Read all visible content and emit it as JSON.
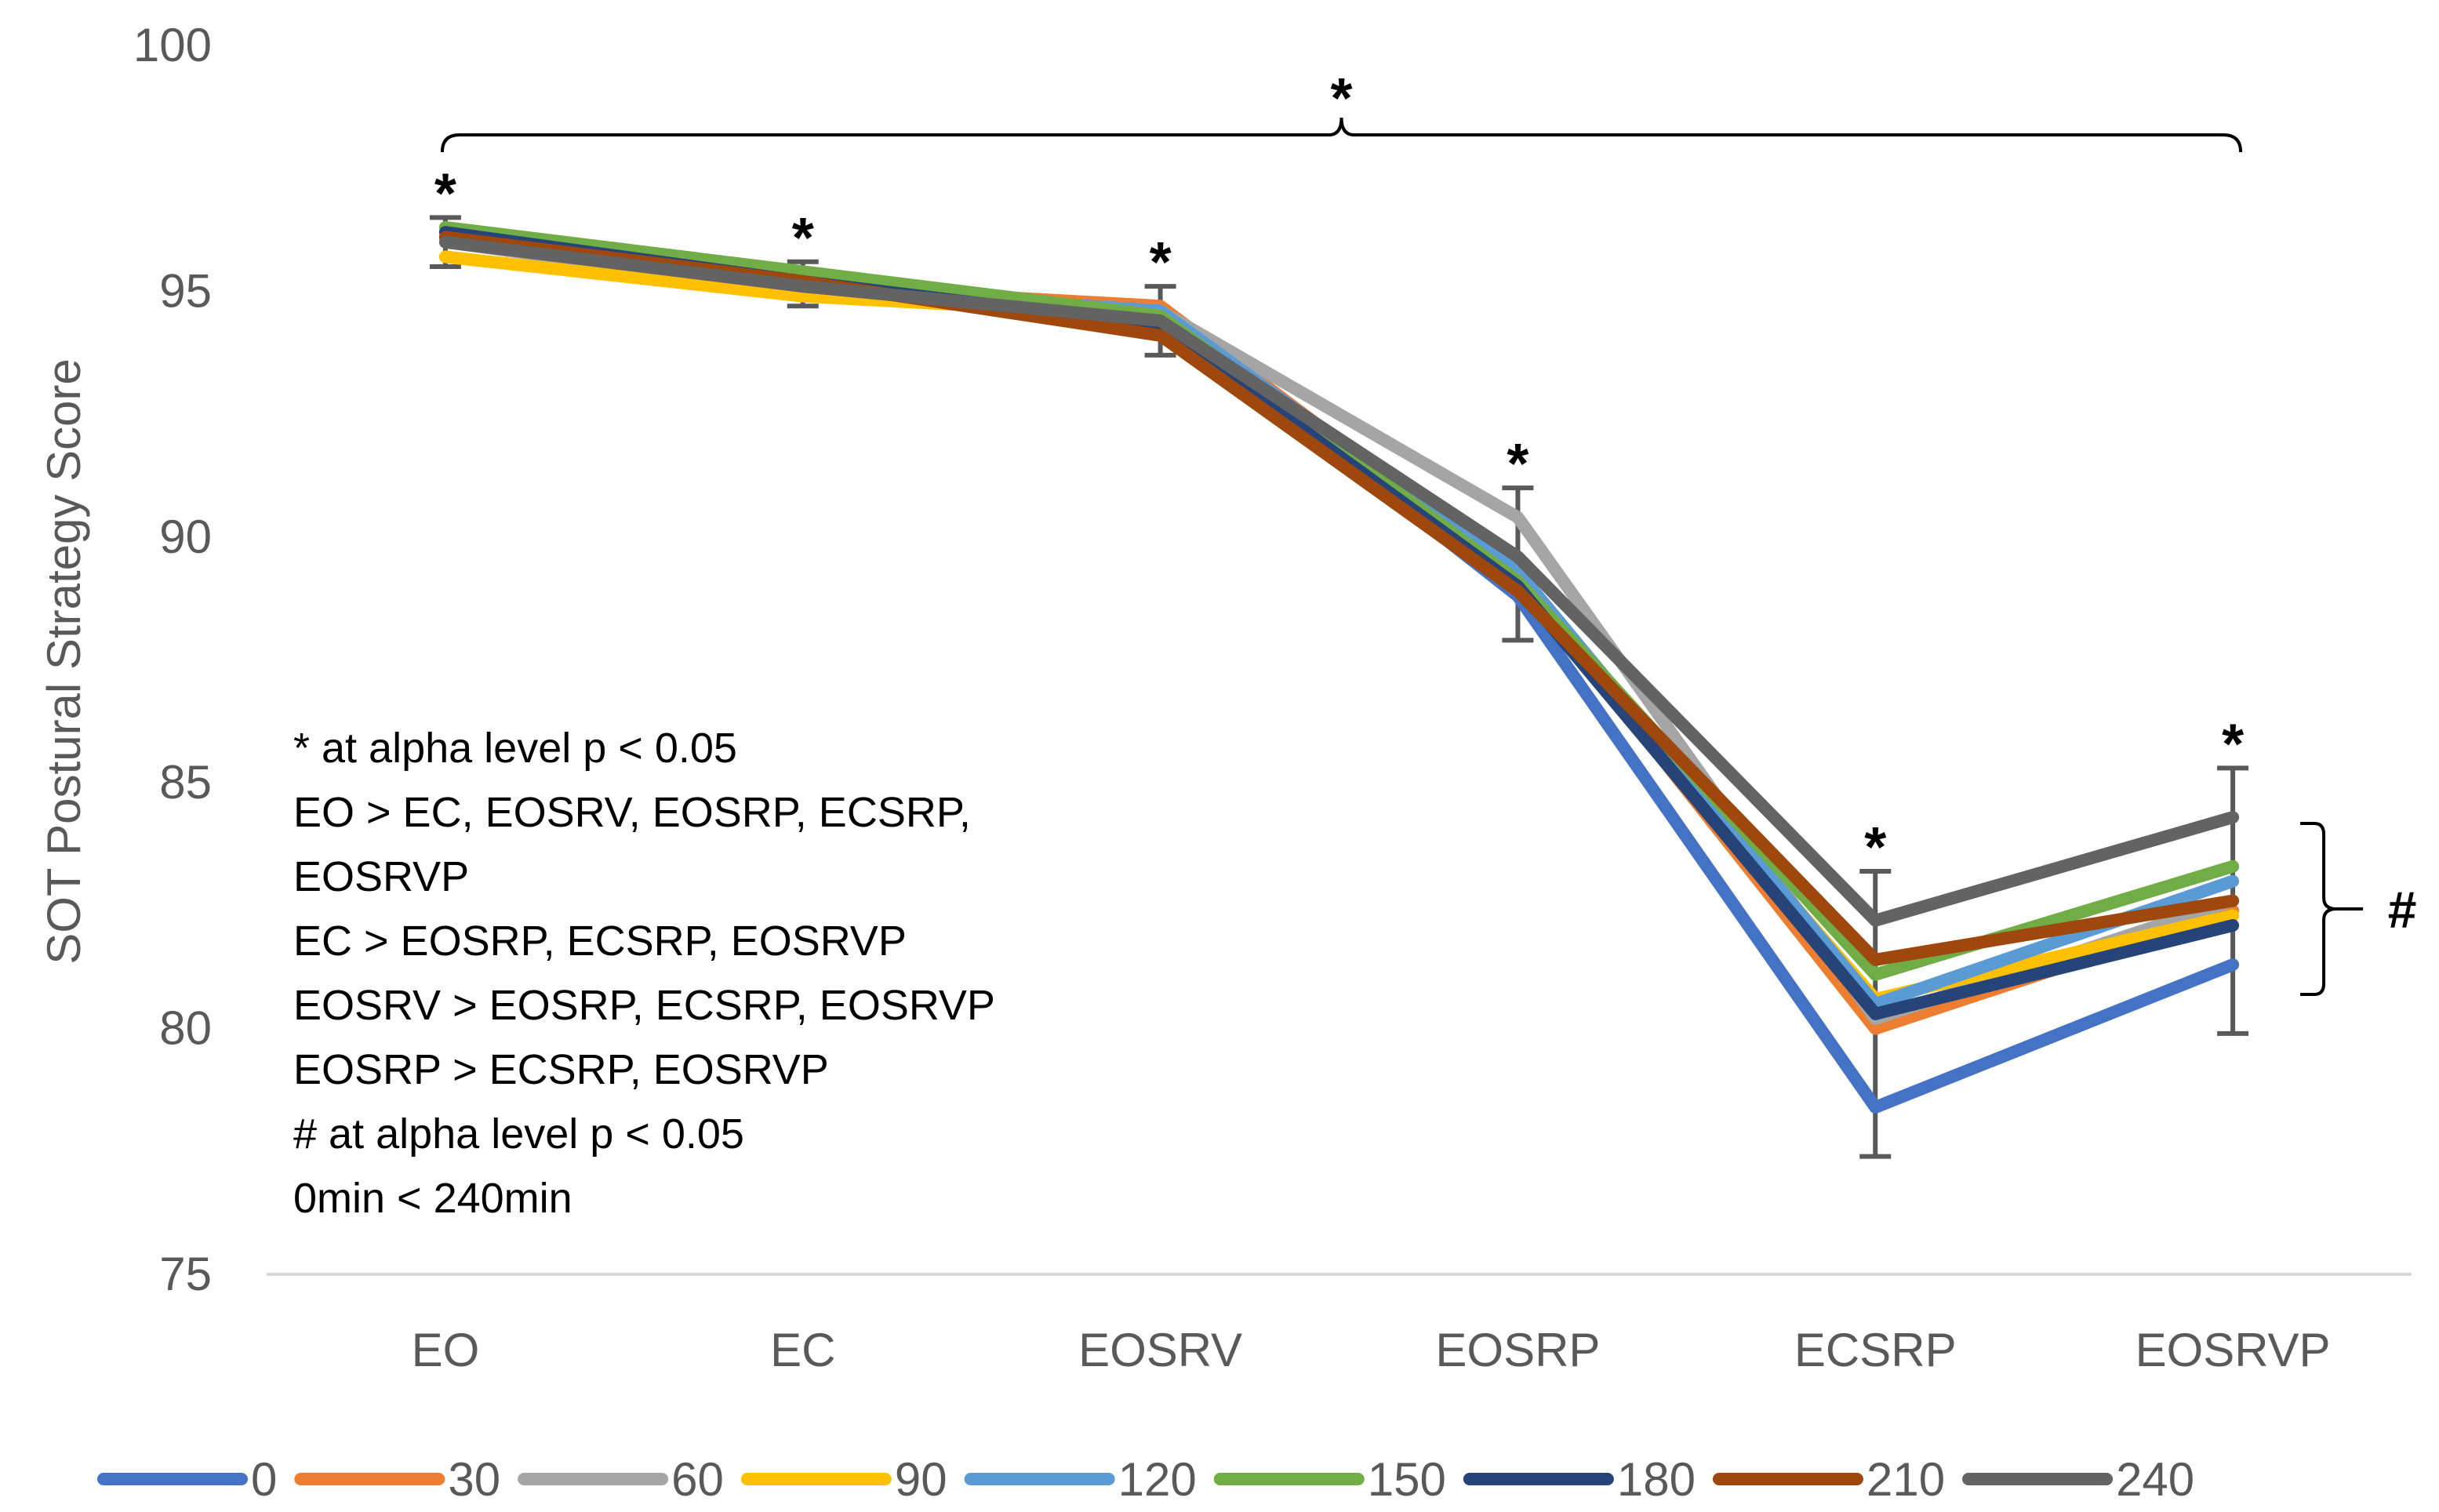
{
  "chart_data": {
    "type": "line",
    "title": "",
    "xlabel": "",
    "ylabel": "SOT Postural Strategy Score",
    "ylim": [
      75,
      100
    ],
    "yticks": [
      75,
      80,
      85,
      90,
      95,
      100
    ],
    "grid": false,
    "legend_position": "bottom",
    "categories": [
      "EO",
      "EC",
      "EOSRV",
      "EOSRP",
      "ECSRP",
      "EOSRVP"
    ],
    "series": [
      {
        "name": "0",
        "color": "#4472C4",
        "values": [
          96.1,
          95.2,
          94.5,
          88.8,
          78.4,
          81.3
        ]
      },
      {
        "name": "30",
        "color": "#ED7D31",
        "values": [
          96.2,
          95.1,
          94.7,
          89.2,
          80.0,
          82.4
        ]
      },
      {
        "name": "60",
        "color": "#A5A5A5",
        "values": [
          96.0,
          95.0,
          94.6,
          90.4,
          80.2,
          82.6
        ]
      },
      {
        "name": "90",
        "color": "#FFC000",
        "values": [
          95.7,
          94.9,
          94.5,
          89.0,
          80.6,
          82.3
        ]
      },
      {
        "name": "120",
        "color": "#5B9BD5",
        "values": [
          96.1,
          95.1,
          94.6,
          89.3,
          80.5,
          83.0
        ]
      },
      {
        "name": "150",
        "color": "#70AD47",
        "values": [
          96.3,
          95.4,
          94.5,
          89.1,
          81.1,
          83.3
        ]
      },
      {
        "name": "180",
        "color": "#264478",
        "values": [
          96.2,
          95.2,
          94.3,
          89.0,
          80.3,
          82.1
        ]
      },
      {
        "name": "210",
        "color": "#9E480E",
        "values": [
          96.1,
          95.2,
          94.1,
          88.9,
          81.4,
          82.6
        ]
      },
      {
        "name": "240",
        "color": "#636363",
        "values": [
          96.0,
          95.1,
          94.4,
          89.6,
          82.2,
          84.3
        ]
      }
    ],
    "error_bars": [
      {
        "category": "EO",
        "low": 95.5,
        "high": 96.5
      },
      {
        "category": "EC",
        "low": 94.7,
        "high": 95.6
      },
      {
        "category": "EOSRV",
        "low": 93.7,
        "high": 95.1
      },
      {
        "category": "EOSRP",
        "low": 87.9,
        "high": 91.0
      },
      {
        "category": "ECSRP",
        "low": 77.4,
        "high": 83.2
      },
      {
        "category": "EOSRVP",
        "low": 79.9,
        "high": 85.3
      }
    ],
    "significance_markers": [
      {
        "category": "EO",
        "label": "*"
      },
      {
        "category": "EC",
        "label": "*"
      },
      {
        "category": "EOSRV",
        "label": "*"
      },
      {
        "category": "EOSRP",
        "label": "*"
      },
      {
        "category": "ECSRP",
        "label": "*"
      },
      {
        "category": "EOSRVP",
        "label": "*"
      }
    ],
    "top_bracket_label": "*",
    "side_bracket_label": "#",
    "annotations": [
      "* at alpha level p < 0.05",
      "EO > EC, EOSRV, EOSRP, ECSRP,",
      "EOSRVP",
      "EC > EOSRP, ECSRP, EOSRVP",
      "EOSRV > EOSRP, ECSRP, EOSRVP",
      "EOSRP > ECSRP, EOSRVP",
      "# at alpha level p < 0.05",
      "0min < 240min"
    ]
  }
}
